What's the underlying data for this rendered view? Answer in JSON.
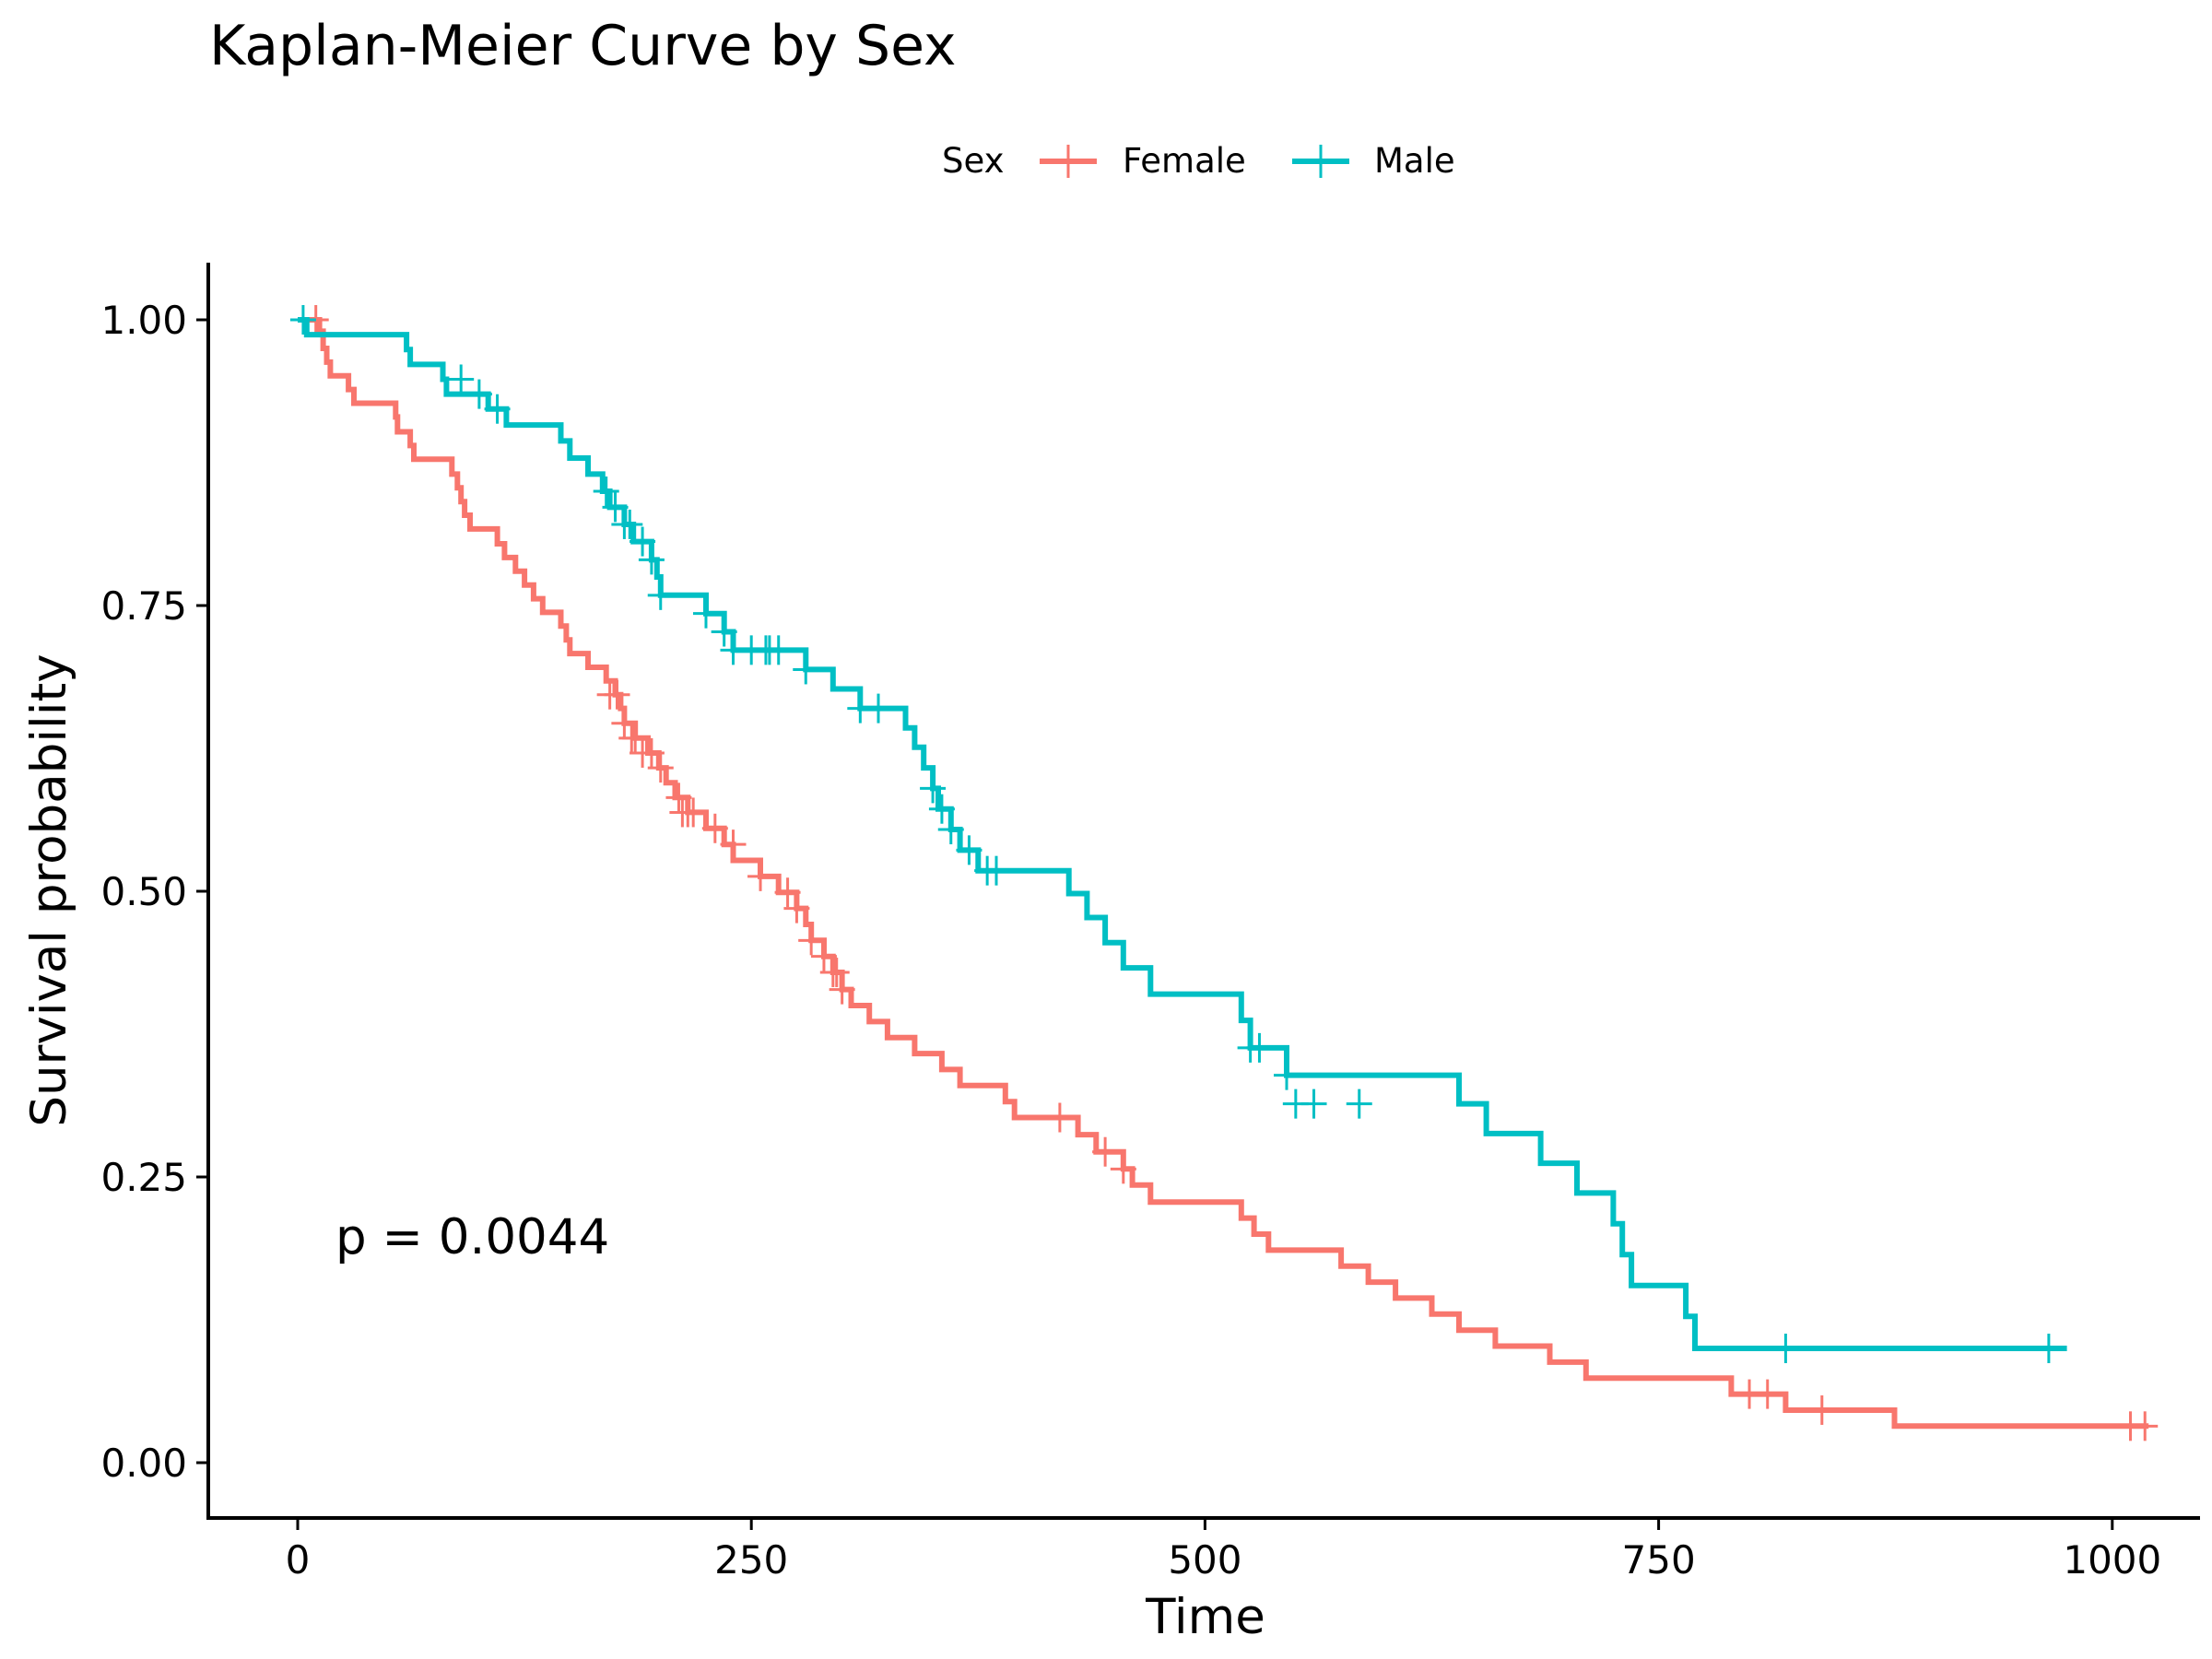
{
  "chart_data": {
    "type": "line",
    "subtype": "kaplan-meier step curves",
    "title": "Kaplan-Meier Curve by Sex",
    "xlabel": "Time",
    "ylabel": "Survival probability",
    "xlim": [
      -50,
      1050
    ],
    "ylim": [
      -0.05,
      1.05
    ],
    "xticks": [
      0,
      250,
      500,
      750,
      1000
    ],
    "xtick_labels": [
      "0",
      "250",
      "500",
      "750",
      "1000"
    ],
    "yticks": [
      0,
      0.25,
      0.5,
      0.75,
      1
    ],
    "ytick_labels": [
      "0.00",
      "0.25",
      "0.50",
      "0.75",
      "1.00"
    ],
    "grid": false,
    "legend": {
      "title": "Sex",
      "position": "top",
      "entries": [
        "Female",
        "Male"
      ]
    },
    "annotation": {
      "text": "p = 0.0044",
      "x": 25,
      "y": 0.19
    },
    "series": [
      {
        "name": "Female",
        "color": "#F8766D",
        "steps": [
          [
            0,
            1.0
          ],
          [
            12,
            0.99
          ],
          [
            14,
            0.975
          ],
          [
            16,
            0.963
          ],
          [
            18,
            0.951
          ],
          [
            28,
            0.939
          ],
          [
            31,
            0.927
          ],
          [
            54,
            0.915
          ],
          [
            55,
            0.902
          ],
          [
            62,
            0.89
          ],
          [
            64,
            0.878
          ],
          [
            85,
            0.865
          ],
          [
            88,
            0.853
          ],
          [
            90,
            0.841
          ],
          [
            92,
            0.829
          ],
          [
            95,
            0.817
          ],
          [
            110,
            0.804
          ],
          [
            114,
            0.792
          ],
          [
            120,
            0.78
          ],
          [
            125,
            0.768
          ],
          [
            130,
            0.756
          ],
          [
            135,
            0.744
          ],
          [
            145,
            0.732
          ],
          [
            148,
            0.72
          ],
          [
            150,
            0.708
          ],
          [
            160,
            0.696
          ],
          [
            170,
            0.684
          ],
          [
            175,
            0.672
          ],
          [
            178,
            0.66
          ],
          [
            180,
            0.647
          ],
          [
            186,
            0.634
          ],
          [
            193,
            0.621
          ],
          [
            199,
            0.608
          ],
          [
            203,
            0.595
          ],
          [
            208,
            0.582
          ],
          [
            215,
            0.569
          ],
          [
            225,
            0.555
          ],
          [
            235,
            0.541
          ],
          [
            240,
            0.527
          ],
          [
            255,
            0.513
          ],
          [
            265,
            0.499
          ],
          [
            275,
            0.485
          ],
          [
            280,
            0.471
          ],
          [
            283,
            0.457
          ],
          [
            290,
            0.443
          ],
          [
            295,
            0.429
          ],
          [
            300,
            0.414
          ],
          [
            305,
            0.4
          ],
          [
            315,
            0.386
          ],
          [
            325,
            0.372
          ],
          [
            340,
            0.358
          ],
          [
            355,
            0.344
          ],
          [
            365,
            0.33
          ],
          [
            390,
            0.316
          ],
          [
            395,
            0.302
          ],
          [
            430,
            0.287
          ],
          [
            440,
            0.272
          ],
          [
            455,
            0.257
          ],
          [
            460,
            0.243
          ],
          [
            470,
            0.228
          ],
          [
            520,
            0.214
          ],
          [
            527,
            0.2
          ],
          [
            535,
            0.186
          ],
          [
            575,
            0.172
          ],
          [
            590,
            0.158
          ],
          [
            605,
            0.144
          ],
          [
            625,
            0.13
          ],
          [
            640,
            0.116
          ],
          [
            660,
            0.102
          ],
          [
            690,
            0.088
          ],
          [
            710,
            0.074
          ],
          [
            790,
            0.06
          ],
          [
            820,
            0.046
          ],
          [
            880,
            0.032
          ],
          [
            1020,
            0.032
          ]
        ],
        "censored": [
          [
            10,
            1.0
          ],
          [
            172,
            0.672
          ],
          [
            176,
            0.672
          ],
          [
            180,
            0.647
          ],
          [
            184,
            0.634
          ],
          [
            186,
            0.634
          ],
          [
            190,
            0.621
          ],
          [
            195,
            0.621
          ],
          [
            200,
            0.608
          ],
          [
            210,
            0.582
          ],
          [
            212,
            0.569
          ],
          [
            215,
            0.569
          ],
          [
            218,
            0.569
          ],
          [
            230,
            0.555
          ],
          [
            240,
            0.541
          ],
          [
            255,
            0.513
          ],
          [
            270,
            0.499
          ],
          [
            275,
            0.485
          ],
          [
            283,
            0.457
          ],
          [
            290,
            0.443
          ],
          [
            295,
            0.429
          ],
          [
            297,
            0.429
          ],
          [
            300,
            0.414
          ],
          [
            420,
            0.302
          ],
          [
            445,
            0.272
          ],
          [
            455,
            0.257
          ],
          [
            800,
            0.06
          ],
          [
            810,
            0.06
          ],
          [
            840,
            0.046
          ],
          [
            1010,
            0.032
          ],
          [
            1018,
            0.032
          ]
        ]
      },
      {
        "name": "Male",
        "color": "#00BFC4",
        "steps": [
          [
            0,
            1.0
          ],
          [
            5,
            0.987
          ],
          [
            60,
            0.974
          ],
          [
            62,
            0.961
          ],
          [
            80,
            0.948
          ],
          [
            82,
            0.935
          ],
          [
            105,
            0.922
          ],
          [
            115,
            0.908
          ],
          [
            145,
            0.894
          ],
          [
            150,
            0.879
          ],
          [
            160,
            0.865
          ],
          [
            168,
            0.85
          ],
          [
            172,
            0.836
          ],
          [
            180,
            0.821
          ],
          [
            185,
            0.806
          ],
          [
            195,
            0.79
          ],
          [
            198,
            0.775
          ],
          [
            200,
            0.759
          ],
          [
            225,
            0.743
          ],
          [
            235,
            0.727
          ],
          [
            240,
            0.711
          ],
          [
            280,
            0.694
          ],
          [
            295,
            0.677
          ],
          [
            310,
            0.66
          ],
          [
            335,
            0.643
          ],
          [
            340,
            0.626
          ],
          [
            345,
            0.608
          ],
          [
            350,
            0.59
          ],
          [
            353,
            0.572
          ],
          [
            360,
            0.554
          ],
          [
            365,
            0.536
          ],
          [
            375,
            0.518
          ],
          [
            425,
            0.498
          ],
          [
            435,
            0.477
          ],
          [
            445,
            0.455
          ],
          [
            455,
            0.433
          ],
          [
            470,
            0.41
          ],
          [
            520,
            0.387
          ],
          [
            525,
            0.363
          ],
          [
            545,
            0.339
          ],
          [
            640,
            0.314
          ],
          [
            655,
            0.288
          ],
          [
            685,
            0.262
          ],
          [
            705,
            0.236
          ],
          [
            725,
            0.209
          ],
          [
            730,
            0.182
          ],
          [
            735,
            0.155
          ],
          [
            765,
            0.128
          ],
          [
            770,
            0.1
          ],
          [
            975,
            0.1
          ]
        ],
        "censored": [
          [
            3,
            1.0
          ],
          [
            90,
            0.948
          ],
          [
            100,
            0.935
          ],
          [
            110,
            0.922
          ],
          [
            170,
            0.85
          ],
          [
            175,
            0.836
          ],
          [
            180,
            0.821
          ],
          [
            183,
            0.821
          ],
          [
            190,
            0.806
          ],
          [
            195,
            0.79
          ],
          [
            200,
            0.759
          ],
          [
            225,
            0.743
          ],
          [
            235,
            0.727
          ],
          [
            240,
            0.711
          ],
          [
            250,
            0.711
          ],
          [
            258,
            0.711
          ],
          [
            260,
            0.711
          ],
          [
            265,
            0.711
          ],
          [
            280,
            0.694
          ],
          [
            310,
            0.66
          ],
          [
            320,
            0.66
          ],
          [
            350,
            0.59
          ],
          [
            355,
            0.572
          ],
          [
            360,
            0.554
          ],
          [
            370,
            0.536
          ],
          [
            380,
            0.518
          ],
          [
            385,
            0.518
          ],
          [
            525,
            0.363
          ],
          [
            530,
            0.363
          ],
          [
            545,
            0.339
          ],
          [
            550,
            0.314
          ],
          [
            560,
            0.314
          ],
          [
            585,
            0.314
          ],
          [
            820,
            0.1
          ],
          [
            965,
            0.1
          ]
        ]
      }
    ]
  }
}
